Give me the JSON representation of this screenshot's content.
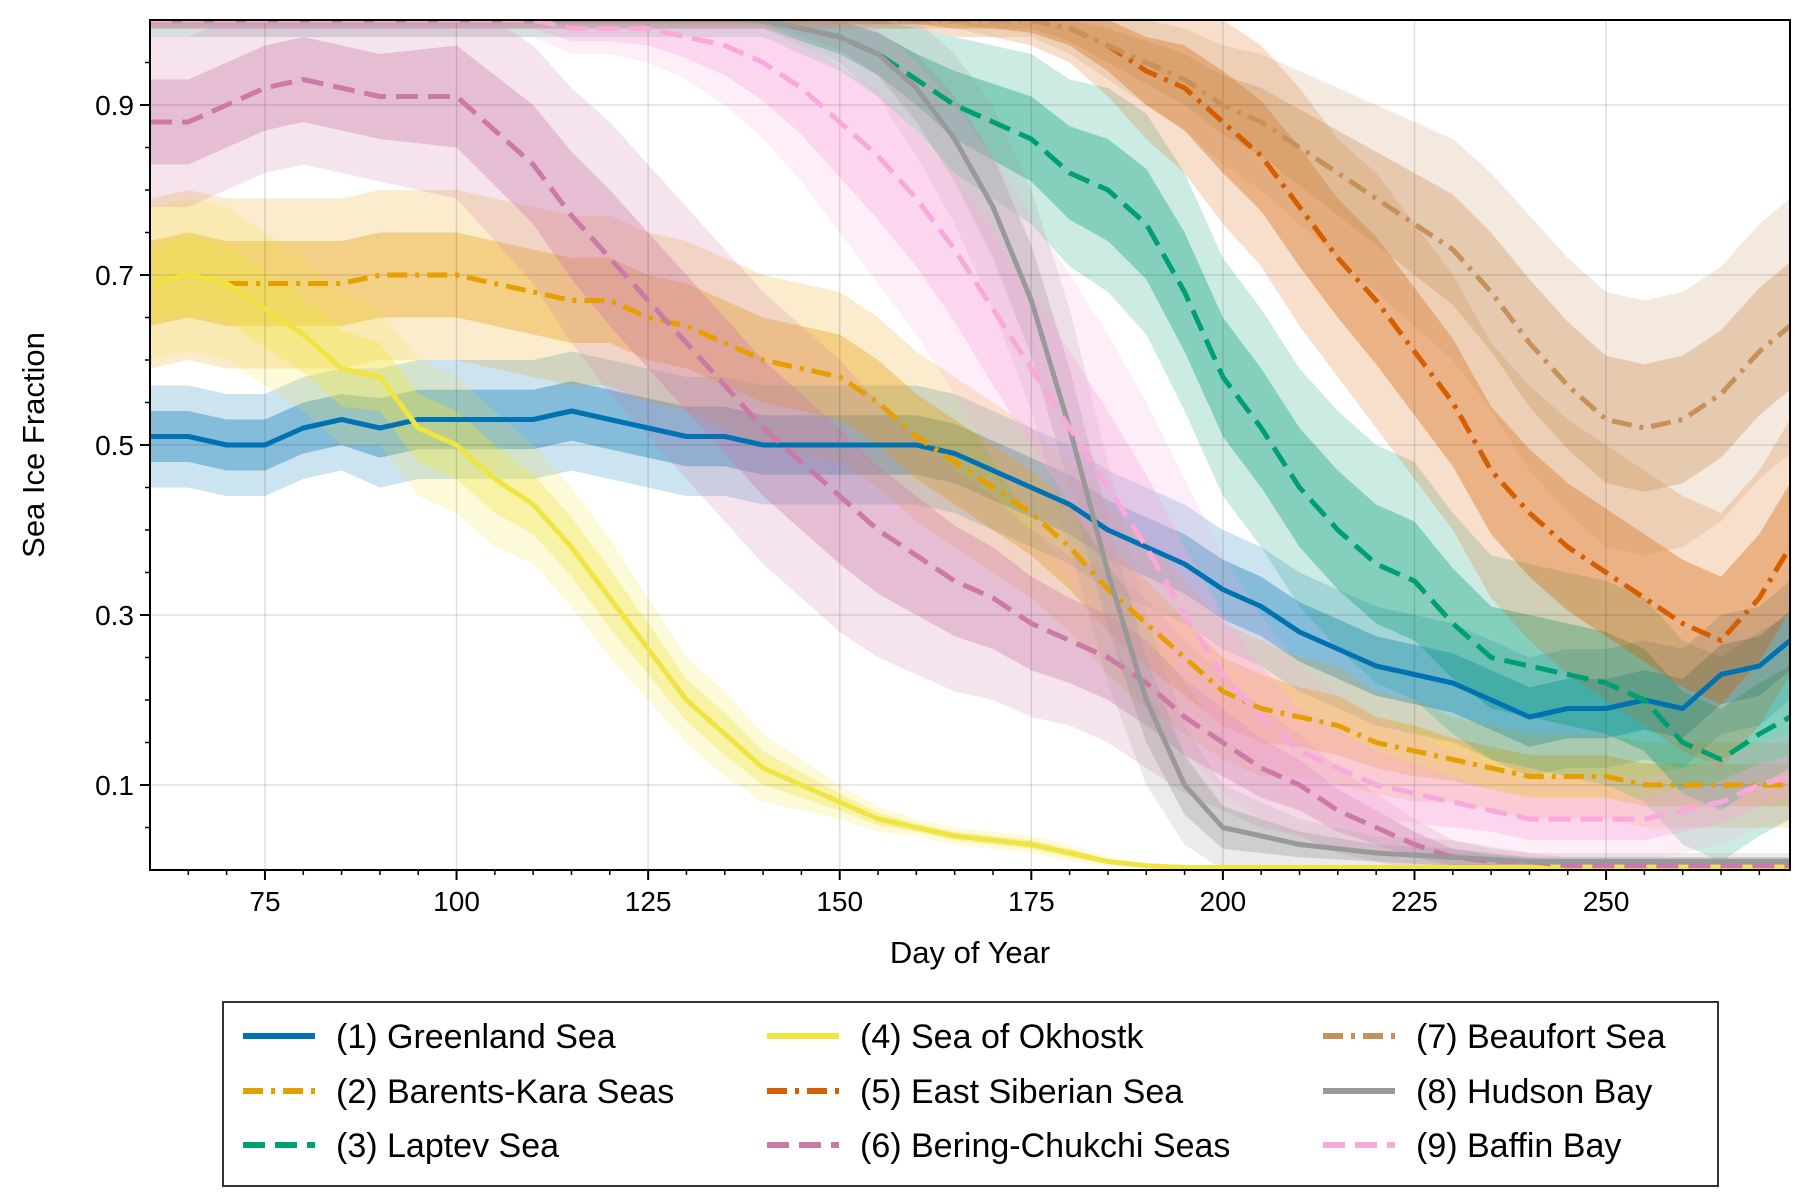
{
  "chart_data": {
    "type": "line",
    "xlabel": "Day of Year",
    "ylabel": "Sea Ice Fraction",
    "xlim": [
      60,
      274
    ],
    "ylim": [
      0,
      1
    ],
    "xticks": [
      75,
      100,
      125,
      150,
      175,
      200,
      225,
      250
    ],
    "yticks": [
      0.1,
      0.3,
      0.5,
      0.7,
      0.9
    ],
    "grid": true,
    "legend": {
      "placement": "bottom",
      "columns": 3
    },
    "series": [
      {
        "name": "(1) Greenland Sea",
        "color": "#0072B2",
        "dash": "solid",
        "x": [
          60,
          65,
          70,
          75,
          80,
          85,
          90,
          95,
          100,
          105,
          110,
          115,
          120,
          125,
          130,
          135,
          140,
          145,
          150,
          155,
          160,
          165,
          170,
          175,
          180,
          185,
          190,
          195,
          200,
          205,
          210,
          215,
          220,
          225,
          230,
          235,
          240,
          245,
          250,
          255,
          260,
          265,
          270,
          274
        ],
        "y": [
          0.51,
          0.51,
          0.5,
          0.5,
          0.52,
          0.53,
          0.52,
          0.53,
          0.53,
          0.53,
          0.53,
          0.54,
          0.53,
          0.52,
          0.51,
          0.51,
          0.5,
          0.5,
          0.5,
          0.5,
          0.5,
          0.49,
          0.47,
          0.45,
          0.43,
          0.4,
          0.38,
          0.36,
          0.33,
          0.31,
          0.28,
          0.26,
          0.24,
          0.23,
          0.22,
          0.2,
          0.18,
          0.19,
          0.19,
          0.2,
          0.19,
          0.23,
          0.24,
          0.27
        ],
        "band": [
          0.06,
          0.06,
          0.06,
          0.06,
          0.06,
          0.06,
          0.07,
          0.07,
          0.07,
          0.07,
          0.07,
          0.07,
          0.07,
          0.07,
          0.07,
          0.07,
          0.07,
          0.07,
          0.07,
          0.07,
          0.07,
          0.07,
          0.07,
          0.07,
          0.07,
          0.07,
          0.07,
          0.07,
          0.07,
          0.07,
          0.07,
          0.07,
          0.07,
          0.07,
          0.07,
          0.07,
          0.07,
          0.07,
          0.07,
          0.07,
          0.07,
          0.07,
          0.07,
          0.07
        ]
      },
      {
        "name": "(2) Barents-Kara Seas",
        "color": "#E69F00",
        "dash": "dashdot",
        "x": [
          60,
          65,
          70,
          75,
          80,
          85,
          90,
          95,
          100,
          105,
          110,
          115,
          120,
          125,
          130,
          135,
          140,
          145,
          150,
          155,
          160,
          165,
          170,
          175,
          180,
          185,
          190,
          195,
          200,
          205,
          210,
          215,
          220,
          225,
          230,
          235,
          240,
          245,
          250,
          255,
          260,
          265,
          270,
          274
        ],
        "y": [
          0.69,
          0.7,
          0.69,
          0.69,
          0.69,
          0.69,
          0.7,
          0.7,
          0.7,
          0.69,
          0.68,
          0.67,
          0.67,
          0.65,
          0.64,
          0.62,
          0.6,
          0.59,
          0.58,
          0.55,
          0.51,
          0.48,
          0.45,
          0.42,
          0.38,
          0.33,
          0.29,
          0.25,
          0.21,
          0.19,
          0.18,
          0.17,
          0.15,
          0.14,
          0.13,
          0.12,
          0.11,
          0.11,
          0.11,
          0.1,
          0.1,
          0.1,
          0.1,
          0.1
        ],
        "band": [
          0.1,
          0.1,
          0.1,
          0.1,
          0.1,
          0.1,
          0.1,
          0.1,
          0.1,
          0.1,
          0.1,
          0.1,
          0.1,
          0.1,
          0.1,
          0.1,
          0.1,
          0.1,
          0.1,
          0.1,
          0.1,
          0.1,
          0.1,
          0.1,
          0.1,
          0.1,
          0.1,
          0.09,
          0.08,
          0.08,
          0.07,
          0.07,
          0.06,
          0.06,
          0.05,
          0.05,
          0.05,
          0.05,
          0.05,
          0.05,
          0.05,
          0.05,
          0.05,
          0.05
        ]
      },
      {
        "name": "(3) Laptev Sea",
        "color": "#009E73",
        "dash": "dashed",
        "x": [
          60,
          65,
          70,
          75,
          80,
          85,
          90,
          95,
          100,
          105,
          110,
          115,
          120,
          125,
          130,
          135,
          140,
          145,
          150,
          155,
          160,
          165,
          170,
          175,
          180,
          185,
          190,
          195,
          200,
          205,
          210,
          215,
          220,
          225,
          230,
          235,
          240,
          245,
          250,
          255,
          260,
          265,
          270,
          274
        ],
        "y": [
          1.0,
          1.0,
          1.0,
          1.0,
          1.0,
          1.0,
          1.0,
          1.0,
          1.0,
          1.0,
          1.0,
          1.0,
          1.0,
          1.0,
          1.0,
          1.0,
          1.0,
          0.99,
          0.98,
          0.96,
          0.93,
          0.9,
          0.88,
          0.86,
          0.82,
          0.8,
          0.76,
          0.68,
          0.58,
          0.52,
          0.45,
          0.4,
          0.36,
          0.34,
          0.29,
          0.25,
          0.24,
          0.23,
          0.22,
          0.2,
          0.15,
          0.13,
          0.16,
          0.18
        ],
        "band": [
          0.02,
          0.02,
          0.02,
          0.02,
          0.02,
          0.02,
          0.02,
          0.02,
          0.02,
          0.02,
          0.02,
          0.02,
          0.02,
          0.02,
          0.02,
          0.02,
          0.02,
          0.03,
          0.04,
          0.05,
          0.06,
          0.08,
          0.09,
          0.1,
          0.11,
          0.12,
          0.13,
          0.14,
          0.14,
          0.14,
          0.14,
          0.14,
          0.14,
          0.14,
          0.13,
          0.12,
          0.12,
          0.12,
          0.12,
          0.12,
          0.12,
          0.12,
          0.12,
          0.12
        ]
      },
      {
        "name": "(4) Sea of Okhostk",
        "color": "#F0E442",
        "dash": "solid",
        "x": [
          60,
          65,
          70,
          75,
          80,
          85,
          90,
          95,
          100,
          105,
          110,
          115,
          120,
          125,
          130,
          135,
          140,
          145,
          150,
          155,
          160,
          165,
          170,
          175,
          180,
          185,
          190,
          195,
          200,
          205,
          210,
          215,
          220,
          225,
          230,
          240,
          250,
          260,
          274
        ],
        "y": [
          0.69,
          0.7,
          0.69,
          0.66,
          0.63,
          0.59,
          0.58,
          0.52,
          0.5,
          0.46,
          0.43,
          0.38,
          0.32,
          0.26,
          0.2,
          0.16,
          0.12,
          0.1,
          0.08,
          0.06,
          0.05,
          0.04,
          0.035,
          0.03,
          0.02,
          0.01,
          0.005,
          0.003,
          0.003,
          0.003,
          0.003,
          0.003,
          0.003,
          0.003,
          0.003,
          0.003,
          0.003,
          0.003,
          0.003
        ],
        "band": [
          0.09,
          0.09,
          0.09,
          0.09,
          0.09,
          0.09,
          0.08,
          0.08,
          0.08,
          0.08,
          0.07,
          0.07,
          0.07,
          0.06,
          0.05,
          0.05,
          0.04,
          0.03,
          0.02,
          0.015,
          0.01,
          0.01,
          0.01,
          0.01,
          0.01,
          0.005,
          0.003,
          0.003,
          0.003,
          0.003,
          0.003,
          0.003,
          0.003,
          0.003,
          0.003,
          0.003,
          0.003,
          0.003,
          0.003
        ]
      },
      {
        "name": "(5) East Siberian Sea",
        "color": "#D55E00",
        "dash": "dashdot",
        "x": [
          60,
          65,
          70,
          75,
          80,
          85,
          90,
          95,
          100,
          105,
          110,
          115,
          120,
          125,
          130,
          135,
          140,
          145,
          150,
          155,
          160,
          165,
          170,
          175,
          180,
          185,
          190,
          195,
          200,
          205,
          210,
          215,
          220,
          225,
          230,
          235,
          240,
          245,
          250,
          255,
          260,
          265,
          270,
          274
        ],
        "y": [
          1.0,
          1.0,
          1.0,
          1.0,
          1.0,
          1.0,
          1.0,
          1.0,
          1.0,
          1.0,
          1.0,
          1.0,
          1.0,
          1.0,
          1.0,
          1.0,
          1.0,
          1.0,
          1.0,
          1.0,
          1.0,
          1.0,
          1.0,
          1.0,
          0.99,
          0.97,
          0.94,
          0.92,
          0.88,
          0.84,
          0.78,
          0.72,
          0.67,
          0.61,
          0.55,
          0.47,
          0.42,
          0.38,
          0.35,
          0.32,
          0.29,
          0.27,
          0.32,
          0.38
        ],
        "band": [
          0.01,
          0.01,
          0.01,
          0.01,
          0.01,
          0.01,
          0.01,
          0.01,
          0.01,
          0.01,
          0.01,
          0.01,
          0.01,
          0.01,
          0.01,
          0.01,
          0.01,
          0.01,
          0.01,
          0.01,
          0.01,
          0.02,
          0.02,
          0.03,
          0.04,
          0.06,
          0.08,
          0.1,
          0.12,
          0.13,
          0.14,
          0.14,
          0.15,
          0.15,
          0.15,
          0.15,
          0.15,
          0.15,
          0.15,
          0.15,
          0.15,
          0.15,
          0.15,
          0.15
        ]
      },
      {
        "name": "(6) Bering-Chukchi Seas",
        "color": "#CC79A7",
        "dash": "dashed",
        "x": [
          60,
          65,
          70,
          75,
          80,
          85,
          90,
          95,
          100,
          105,
          110,
          115,
          120,
          125,
          130,
          135,
          140,
          145,
          150,
          155,
          160,
          165,
          170,
          175,
          180,
          185,
          190,
          195,
          200,
          205,
          210,
          215,
          220,
          225,
          230,
          235,
          240,
          245,
          250,
          255,
          260,
          265,
          270,
          274
        ],
        "y": [
          0.88,
          0.88,
          0.9,
          0.92,
          0.93,
          0.92,
          0.91,
          0.91,
          0.91,
          0.87,
          0.83,
          0.77,
          0.72,
          0.67,
          0.62,
          0.57,
          0.52,
          0.48,
          0.44,
          0.4,
          0.37,
          0.34,
          0.32,
          0.29,
          0.27,
          0.25,
          0.22,
          0.18,
          0.15,
          0.12,
          0.1,
          0.07,
          0.05,
          0.03,
          0.015,
          0.01,
          0.01,
          0.005,
          0.005,
          0.005,
          0.005,
          0.005,
          0.005,
          0.005
        ],
        "band": [
          0.1,
          0.1,
          0.1,
          0.1,
          0.1,
          0.1,
          0.1,
          0.11,
          0.12,
          0.13,
          0.14,
          0.15,
          0.16,
          0.16,
          0.16,
          0.16,
          0.16,
          0.16,
          0.16,
          0.15,
          0.14,
          0.13,
          0.12,
          0.11,
          0.1,
          0.1,
          0.1,
          0.09,
          0.08,
          0.07,
          0.06,
          0.05,
          0.04,
          0.03,
          0.02,
          0.015,
          0.01,
          0.01,
          0.01,
          0.01,
          0.01,
          0.01,
          0.01,
          0.01
        ]
      },
      {
        "name": "(7) Beaufort Sea",
        "color": "#C8915A",
        "dash": "dashdot",
        "x": [
          60,
          65,
          70,
          75,
          80,
          85,
          90,
          95,
          100,
          105,
          110,
          115,
          120,
          125,
          130,
          135,
          140,
          145,
          150,
          155,
          160,
          165,
          170,
          175,
          180,
          185,
          190,
          195,
          200,
          205,
          210,
          215,
          220,
          225,
          230,
          235,
          240,
          245,
          250,
          255,
          260,
          265,
          270,
          274
        ],
        "y": [
          1.0,
          1.0,
          1.0,
          1.0,
          1.0,
          1.0,
          1.0,
          1.0,
          1.0,
          1.0,
          1.0,
          1.0,
          1.0,
          1.0,
          1.0,
          1.0,
          1.0,
          1.0,
          1.0,
          1.0,
          1.0,
          1.0,
          1.0,
          1.0,
          0.99,
          0.97,
          0.95,
          0.93,
          0.9,
          0.88,
          0.85,
          0.82,
          0.79,
          0.76,
          0.73,
          0.68,
          0.62,
          0.57,
          0.53,
          0.52,
          0.53,
          0.56,
          0.61,
          0.64
        ],
        "band": [
          0.01,
          0.01,
          0.01,
          0.01,
          0.01,
          0.01,
          0.01,
          0.01,
          0.01,
          0.01,
          0.01,
          0.01,
          0.01,
          0.01,
          0.01,
          0.01,
          0.01,
          0.01,
          0.01,
          0.01,
          0.01,
          0.01,
          0.02,
          0.02,
          0.03,
          0.04,
          0.05,
          0.06,
          0.07,
          0.08,
          0.09,
          0.1,
          0.11,
          0.12,
          0.13,
          0.14,
          0.15,
          0.15,
          0.15,
          0.15,
          0.15,
          0.15,
          0.15,
          0.15
        ]
      },
      {
        "name": "(8) Hudson Bay",
        "color": "#999999",
        "dash": "solid",
        "x": [
          60,
          70,
          80,
          90,
          100,
          110,
          120,
          130,
          140,
          145,
          150,
          155,
          160,
          165,
          170,
          175,
          180,
          185,
          190,
          195,
          200,
          205,
          210,
          220,
          230,
          240,
          250,
          260,
          274
        ],
        "y": [
          1.0,
          1.0,
          1.0,
          1.0,
          1.0,
          1.0,
          1.0,
          1.0,
          1.0,
          0.99,
          0.98,
          0.96,
          0.92,
          0.86,
          0.78,
          0.67,
          0.52,
          0.35,
          0.2,
          0.1,
          0.05,
          0.04,
          0.03,
          0.02,
          0.015,
          0.01,
          0.01,
          0.01,
          0.01
        ],
        "band": [
          0.01,
          0.01,
          0.01,
          0.01,
          0.01,
          0.01,
          0.01,
          0.01,
          0.01,
          0.02,
          0.03,
          0.05,
          0.08,
          0.1,
          0.12,
          0.13,
          0.14,
          0.13,
          0.1,
          0.07,
          0.05,
          0.04,
          0.03,
          0.02,
          0.02,
          0.01,
          0.01,
          0.01,
          0.01
        ]
      },
      {
        "name": "(9) Baffin Bay",
        "color": "#F9A8DC",
        "dash": "dashed",
        "x": [
          60,
          65,
          70,
          75,
          80,
          85,
          90,
          95,
          100,
          105,
          110,
          115,
          120,
          125,
          130,
          135,
          140,
          145,
          150,
          155,
          160,
          165,
          170,
          175,
          180,
          185,
          190,
          195,
          200,
          205,
          210,
          215,
          220,
          225,
          230,
          235,
          240,
          245,
          250,
          255,
          260,
          265,
          270,
          274
        ],
        "y": [
          1.0,
          1.0,
          1.0,
          1.0,
          1.0,
          1.0,
          1.0,
          1.0,
          1.0,
          1.0,
          1.0,
          0.99,
          0.99,
          0.99,
          0.98,
          0.97,
          0.95,
          0.92,
          0.88,
          0.84,
          0.79,
          0.73,
          0.66,
          0.59,
          0.52,
          0.45,
          0.38,
          0.3,
          0.23,
          0.18,
          0.14,
          0.12,
          0.1,
          0.09,
          0.08,
          0.07,
          0.06,
          0.06,
          0.06,
          0.06,
          0.07,
          0.08,
          0.1,
          0.11
        ],
        "band": [
          0.02,
          0.02,
          0.02,
          0.02,
          0.02,
          0.02,
          0.02,
          0.02,
          0.02,
          0.02,
          0.02,
          0.03,
          0.03,
          0.04,
          0.05,
          0.07,
          0.09,
          0.11,
          0.13,
          0.15,
          0.16,
          0.17,
          0.18,
          0.18,
          0.18,
          0.18,
          0.17,
          0.16,
          0.14,
          0.12,
          0.1,
          0.09,
          0.08,
          0.07,
          0.06,
          0.05,
          0.05,
          0.05,
          0.05,
          0.05,
          0.05,
          0.05,
          0.05,
          0.05
        ]
      }
    ]
  }
}
